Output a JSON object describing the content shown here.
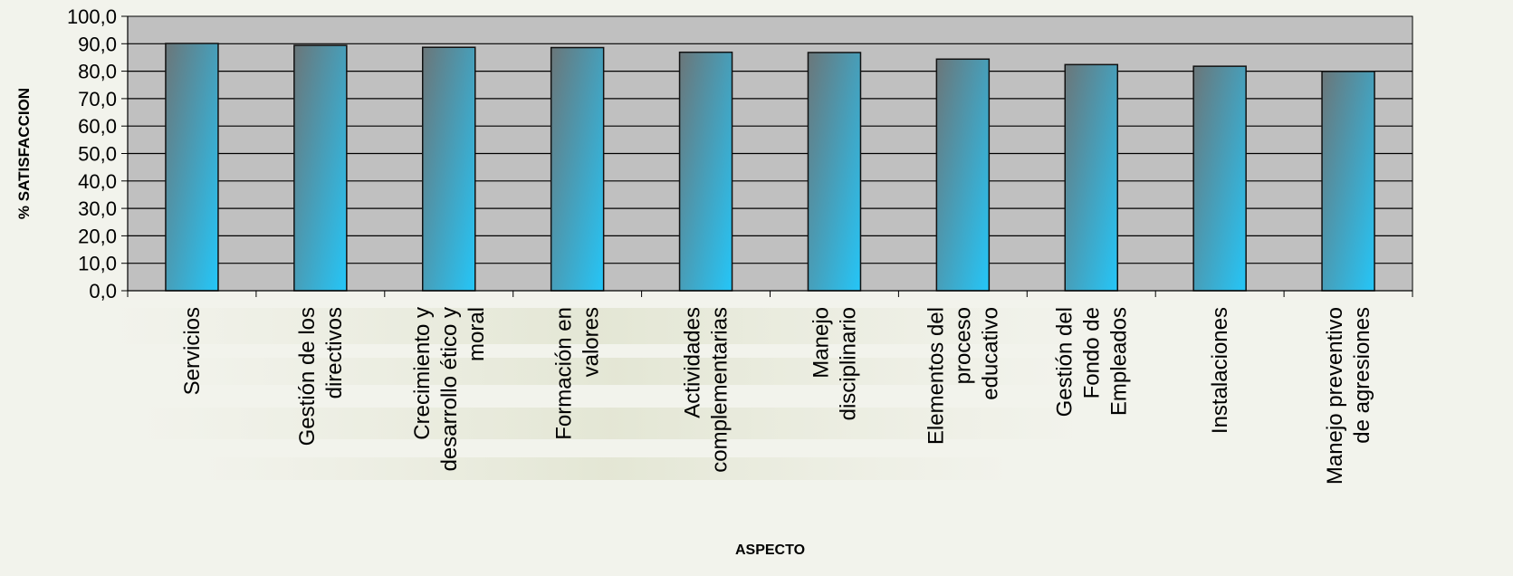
{
  "chart_data": {
    "type": "bar",
    "title": "",
    "ylabel": "% SATISFACCION",
    "xlabel": "ASPECTO",
    "ylim": [
      0,
      100
    ],
    "ytick_step": 10,
    "ytick_labels": [
      "0,0",
      "10,0",
      "20,0",
      "30,0",
      "40,0",
      "50,0",
      "60,0",
      "70,0",
      "80,0",
      "90,0",
      "100,0"
    ],
    "grid": true,
    "categories": [
      [
        "Servicios"
      ],
      [
        "Gestión de los",
        "directivos"
      ],
      [
        "Crecimiento y",
        "desarrollo ético y",
        "moral"
      ],
      [
        "Formación en",
        "valores"
      ],
      [
        "Actividades",
        "complementarias"
      ],
      [
        "Manejo",
        "disciplinario"
      ],
      [
        "Elementos del",
        "proceso",
        "educativo"
      ],
      [
        "Gestión del",
        "Fondo de",
        "Empleados"
      ],
      [
        "Instalaciones"
      ],
      [
        "Manejo preventivo",
        "de agresiones"
      ]
    ],
    "values": [
      90.1,
      89.4,
      88.7,
      88.6,
      86.9,
      86.8,
      84.4,
      82.4,
      81.8,
      79.9
    ],
    "colors": {
      "plot_bg": "#c0c0c0",
      "bar_dark": "#6b7679",
      "bar_light": "#24c6f8",
      "bar_stroke": "#111111",
      "grid": "#000000"
    }
  }
}
